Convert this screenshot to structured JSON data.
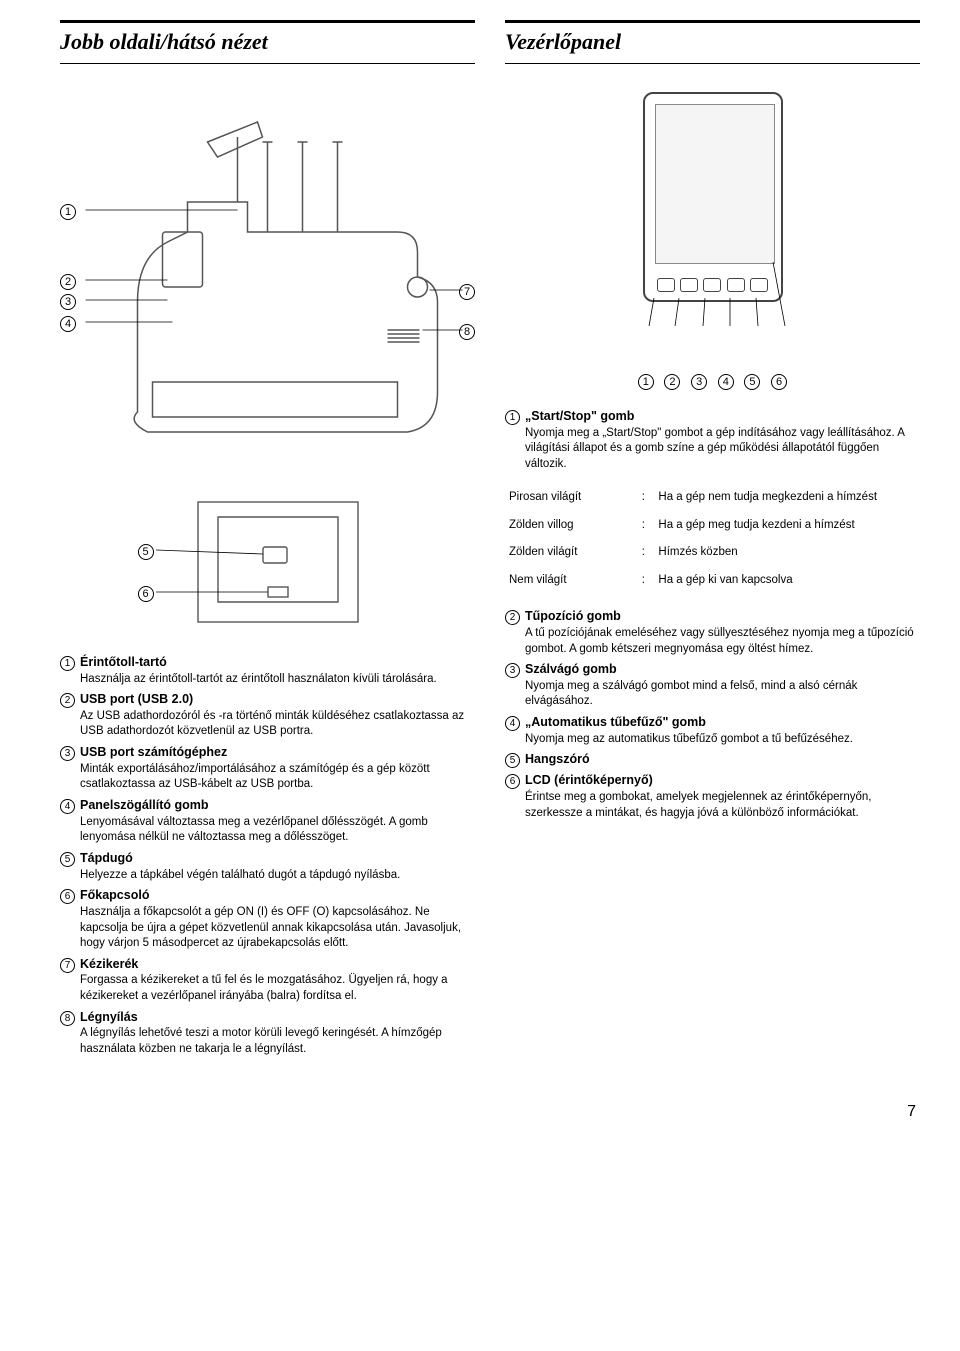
{
  "page_number": "7",
  "left": {
    "heading": "Jobb oldali/hátsó nézet",
    "callouts_machine_left": [
      "1",
      "2",
      "3",
      "4"
    ],
    "callouts_machine_right": [
      "7",
      "8"
    ],
    "callouts_sub": [
      "5",
      "6"
    ],
    "items": [
      {
        "n": "1",
        "title": "Érintőtoll-tartó",
        "desc": "Használja az érintőtoll-tartót az érintőtoll használaton kívüli tárolására."
      },
      {
        "n": "2",
        "title": "USB port (USB 2.0)",
        "desc": "Az USB adathordozóról és -ra történő minták küldéséhez csatlakoztassa az USB adathordozót közvetlenül az USB portra."
      },
      {
        "n": "3",
        "title": "USB port számítógéphez",
        "desc": "Minták exportálásához/importálásához a számítógép és a gép között csatlakoztassa az USB-kábelt az USB portba."
      },
      {
        "n": "4",
        "title": "Panelszögállító gomb",
        "desc": "Lenyomásával változtassa meg a vezérlőpanel dőlésszögét. A gomb lenyomása nélkül ne változtassa meg a dőlésszöget."
      },
      {
        "n": "5",
        "title": "Tápdugó",
        "desc": "Helyezze a tápkábel végén található dugót a tápdugó nyílásba."
      },
      {
        "n": "6",
        "title": "Főkapcsoló",
        "desc": "Használja a főkapcsolót a gép ON (I) és OFF (O) kapcsolásához. Ne kapcsolja be újra a gépet közvetlenül annak kikapcsolása után. Javasoljuk, hogy várjon 5 másodpercet az újrabekapcsolás előtt."
      },
      {
        "n": "7",
        "title": "Kézikerék",
        "desc": "Forgassa a kézikereket a tű fel és le mozgatásához. Ügyeljen rá, hogy a kézikereket a vezérlőpanel irányába (balra) fordítsa el."
      },
      {
        "n": "8",
        "title": "Légnyílás",
        "desc": "A légnyílás lehetővé teszi a motor körüli levegő keringését. A hímzőgép használata közben ne takarja le a légnyílást."
      }
    ]
  },
  "right": {
    "heading": "Vezérlőpanel",
    "callouts_panel": [
      "1",
      "2",
      "3",
      "4",
      "5",
      "6"
    ],
    "intro": {
      "n": "1",
      "title": "„Start/Stop\" gomb",
      "desc": "Nyomja meg a „Start/Stop\" gombot a gép indításához vagy leállításához. A világítási állapot és a gomb színe a gép működési állapotától függően változik."
    },
    "status": [
      {
        "label": "Pirosan világít",
        "value": "Ha a gép nem tudja megkezdeni a hímzést"
      },
      {
        "label": "Zölden villog",
        "value": "Ha a gép meg tudja kezdeni a hímzést"
      },
      {
        "label": "Zölden világít",
        "value": "Hímzés közben"
      },
      {
        "label": "Nem világít",
        "value": "Ha a gép ki van kapcsolva"
      }
    ],
    "items": [
      {
        "n": "2",
        "title": "Tűpozíció gomb",
        "desc": "A tű pozíciójának emeléséhez vagy süllyesztéséhez nyomja meg a tűpozíció gombot. A gomb kétszeri megnyomása egy öltést hímez."
      },
      {
        "n": "3",
        "title": "Szálvágó gomb",
        "desc": "Nyomja meg a szálvágó gombot mind a felső, mind a alsó cérnák elvágásához."
      },
      {
        "n": "4",
        "title": "„Automatikus tűbefűző\" gomb",
        "desc": "Nyomja meg az automatikus tűbefűző gombot a tű befűzéséhez."
      },
      {
        "n": "5",
        "title": "Hangszóró",
        "desc": ""
      },
      {
        "n": "6",
        "title": "LCD (érintőképernyő)",
        "desc": "Érintse meg a gombokat, amelyek megjelennek az érintőképernyőn, szerkessze a mintákat, és hagyja jóvá a különböző információkat."
      }
    ]
  }
}
